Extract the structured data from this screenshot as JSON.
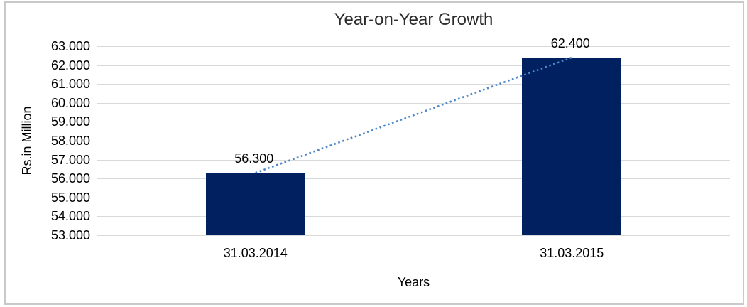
{
  "chart": {
    "title": "Year-on-Year Growth",
    "y_axis_title": "Rs.in Million",
    "x_axis_title": "Years"
  },
  "chart_data": {
    "type": "bar",
    "title": "Year-on-Year Growth",
    "xlabel": "Years",
    "ylabel": "Rs.in Million",
    "categories": [
      "31.03.2014",
      "31.03.2015"
    ],
    "values": [
      56.3,
      62.4
    ],
    "value_labels": [
      "56.300",
      "62.400"
    ],
    "ylim": [
      53,
      63
    ],
    "ytick_step": 1,
    "ytick_labels": [
      "53.000",
      "54.000",
      "55.000",
      "56.000",
      "57.000",
      "58.000",
      "59.000",
      "60.000",
      "61.000",
      "62.000",
      "63.000"
    ],
    "grid": true,
    "legend": false,
    "bar_color": "#002060",
    "gridline_color": "#d9d9d9",
    "trendline": {
      "style": "dotted",
      "color": "#4e86c8",
      "from_value": 56.3,
      "to_value": 62.4
    }
  }
}
